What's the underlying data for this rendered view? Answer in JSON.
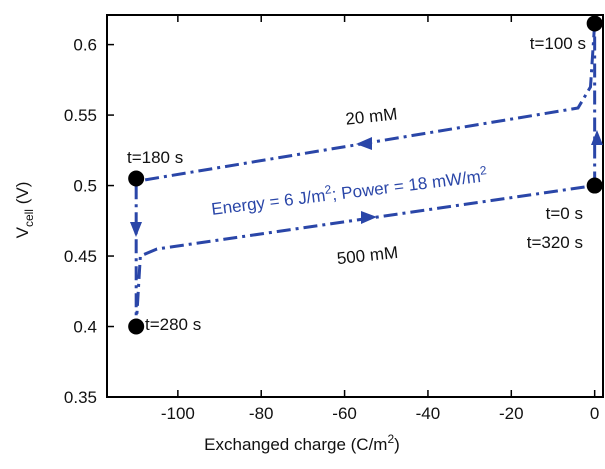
{
  "chart_data": {
    "type": "line",
    "x_label": [
      "Exchanged charge (C/m",
      "2",
      ")"
    ],
    "y_label": [
      "V",
      "cell",
      " (V)"
    ],
    "xlim": [
      -117,
      2
    ],
    "xticks": [
      -100,
      -80,
      -60,
      -40,
      -20,
      0
    ],
    "ylim": [
      0.35,
      0.621
    ],
    "yticks": [
      0.35,
      0.4,
      0.45,
      0.5,
      0.55,
      0.6
    ],
    "series": [
      {
        "color": "#2a46a8",
        "x": [
          0,
          0,
          -1,
          -4,
          -110,
          -110,
          -109,
          -105,
          0
        ],
        "y": [
          0.5,
          0.615,
          0.57,
          0.555,
          0.503,
          0.4,
          0.45,
          0.455,
          0.5
        ]
      },
      {
        "color": "#000000",
        "x": [
          0,
          -110,
          -110,
          0
        ],
        "y": [
          0.615,
          0.505,
          0.4,
          0.5
        ]
      }
    ],
    "annotations": [
      "t=100 s",
      "t=180 s",
      "t=280 s",
      "t=0 s",
      "t=320 s",
      "20 mM",
      "500 mM"
    ],
    "energy_label": [
      "Energy = 6 J/m",
      "2",
      "; Power = 18 mW/m",
      "2"
    ]
  }
}
